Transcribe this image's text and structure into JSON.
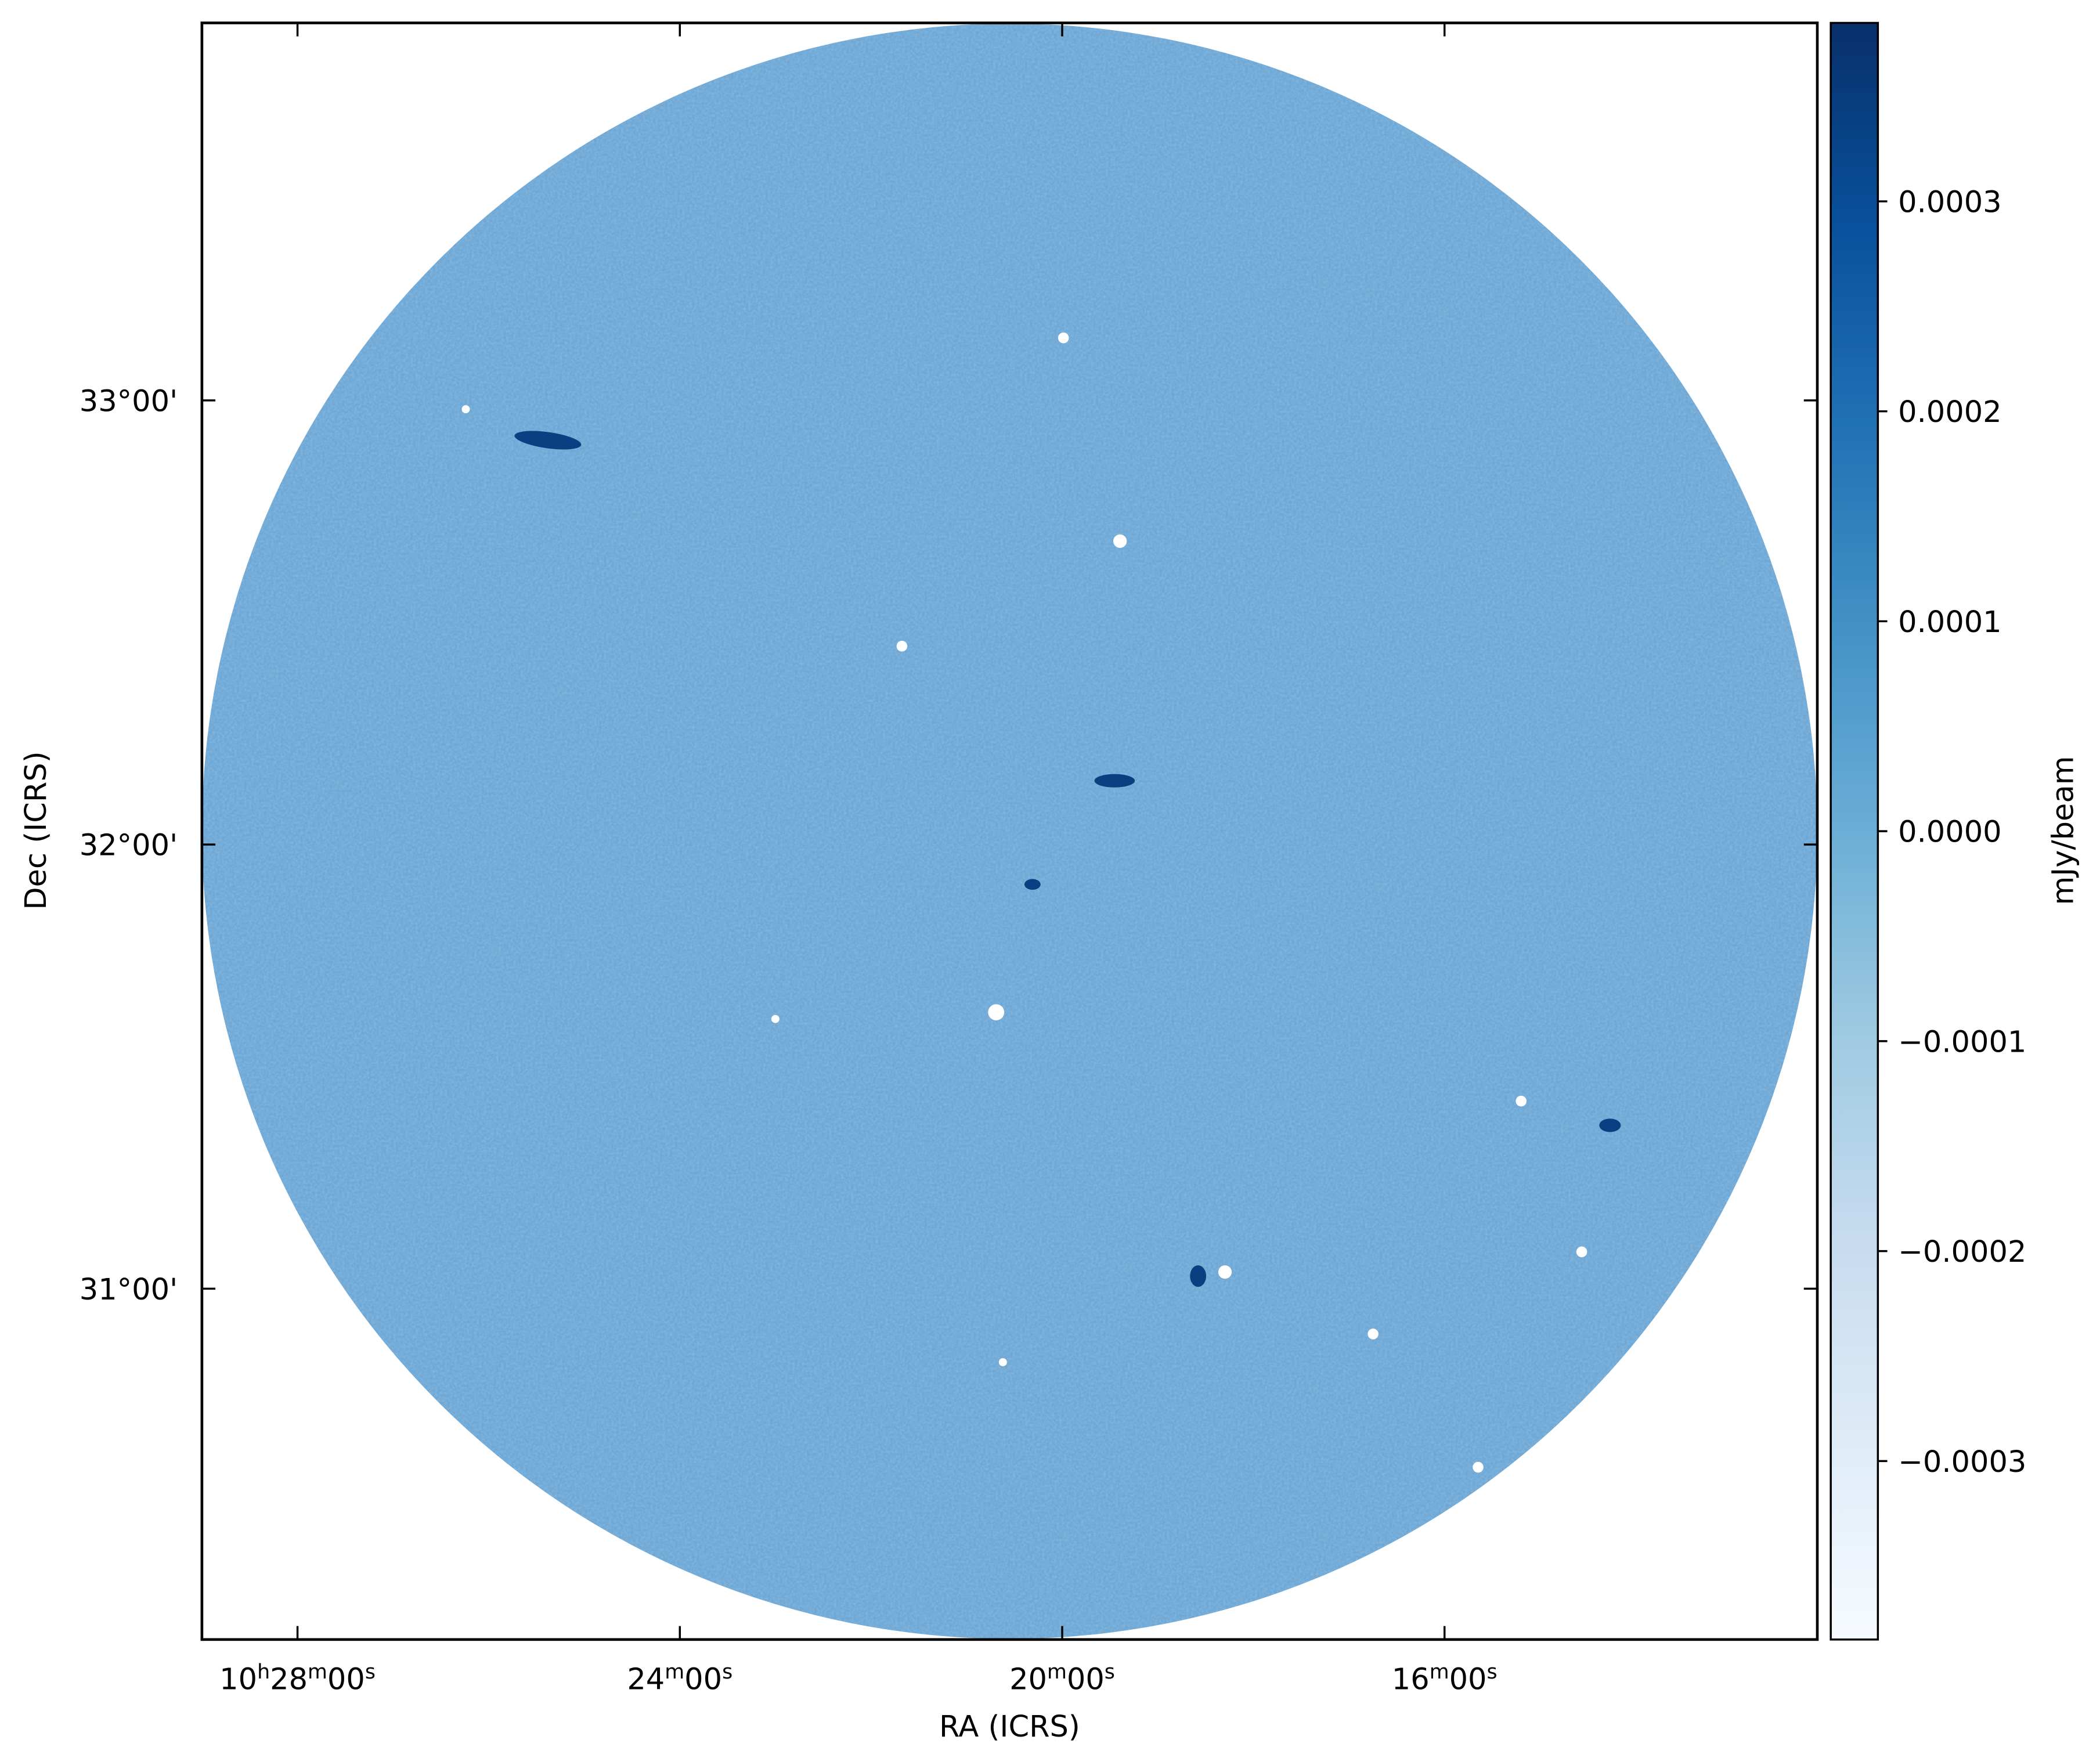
{
  "chart_data": {
    "type": "image",
    "xlabel": "RA (ICRS)",
    "ylabel": "Dec (ICRS)",
    "xlim": [
      629.0,
      612.1
    ],
    "xticks": [
      {
        "value": 628,
        "label": "10h28m00s"
      },
      {
        "value": 624,
        "label": "24m00s"
      },
      {
        "value": 620,
        "label": "20m00s"
      },
      {
        "value": 616,
        "label": "16m00s"
      }
    ],
    "ylim": [
      30.21,
      33.85
    ],
    "yticks": [
      {
        "value": 31,
        "label": "31°00'"
      },
      {
        "value": 32,
        "label": "32°00'"
      },
      {
        "value": 33,
        "label": "33°00'"
      }
    ],
    "colorbar": {
      "label": "mJy/beam",
      "clim": [
        -0.000385,
        0.000385
      ],
      "ticks": [
        {
          "value": -0.0003,
          "label": "−0.0003"
        },
        {
          "value": -0.0002,
          "label": "−0.0002"
        },
        {
          "value": -0.0001,
          "label": "−0.0001"
        },
        {
          "value": 0,
          "label": "0.0000"
        },
        0.0001,
        0.0002,
        0.0003
      ]
    }
  }
}
